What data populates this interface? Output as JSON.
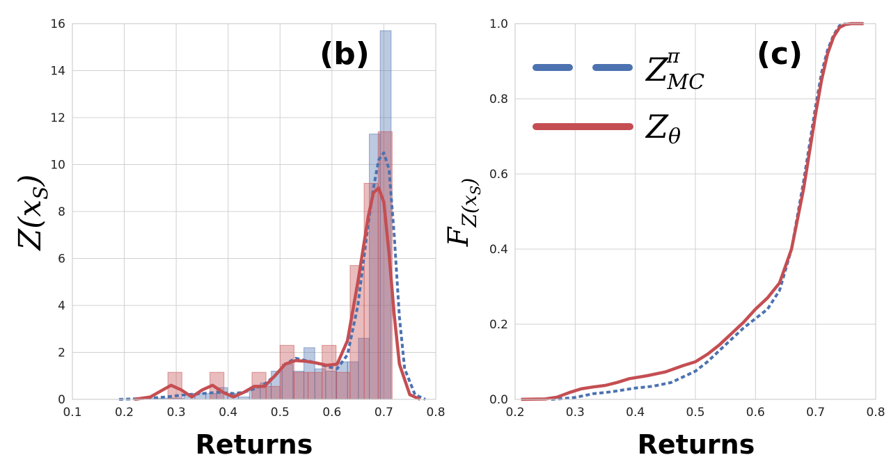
{
  "chart_data": [
    {
      "type": "bar",
      "panel_label": "(b)",
      "xlabel": "Returns",
      "ylabel": "Z(x_S)",
      "xlim": [
        0.1,
        0.8
      ],
      "ylim": [
        0,
        16
      ],
      "xticks": [
        "0.1",
        "0.2",
        "0.3",
        "0.4",
        "0.5",
        "0.6",
        "0.7",
        "0.8"
      ],
      "yticks": [
        "0",
        "2",
        "4",
        "6",
        "8",
        "10",
        "12",
        "14",
        "16"
      ],
      "grid": true,
      "series": [
        {
          "name": "Z_MC^π",
          "kind": "histogram",
          "color": "#4c72b0",
          "bins": [
            {
              "x0": 0.252,
              "x1": 0.273,
              "y": 0.05
            },
            {
              "x0": 0.273,
              "x1": 0.294,
              "y": 0.05
            },
            {
              "x0": 0.294,
              "x1": 0.315,
              "y": 0.05
            },
            {
              "x0": 0.315,
              "x1": 0.336,
              "y": 0.25
            },
            {
              "x0": 0.336,
              "x1": 0.357,
              "y": 0.25
            },
            {
              "x0": 0.357,
              "x1": 0.378,
              "y": 0.25
            },
            {
              "x0": 0.378,
              "x1": 0.399,
              "y": 0.5
            },
            {
              "x0": 0.399,
              "x1": 0.42,
              "y": 0.25
            },
            {
              "x0": 0.42,
              "x1": 0.441,
              "y": 0.1
            },
            {
              "x0": 0.441,
              "x1": 0.462,
              "y": 0.5
            },
            {
              "x0": 0.462,
              "x1": 0.483,
              "y": 0.7
            },
            {
              "x0": 0.483,
              "x1": 0.504,
              "y": 1.2
            },
            {
              "x0": 0.504,
              "x1": 0.525,
              "y": 1.5
            },
            {
              "x0": 0.525,
              "x1": 0.546,
              "y": 1.2
            },
            {
              "x0": 0.546,
              "x1": 0.567,
              "y": 2.2
            },
            {
              "x0": 0.567,
              "x1": 0.588,
              "y": 1.3
            },
            {
              "x0": 0.588,
              "x1": 0.609,
              "y": 1.2
            },
            {
              "x0": 0.609,
              "x1": 0.63,
              "y": 1.6
            },
            {
              "x0": 0.63,
              "x1": 0.651,
              "y": 1.6
            },
            {
              "x0": 0.651,
              "x1": 0.672,
              "y": 2.6
            },
            {
              "x0": 0.672,
              "x1": 0.693,
              "y": 11.3
            },
            {
              "x0": 0.693,
              "x1": 0.714,
              "y": 15.7
            }
          ],
          "kde": {
            "style": "dashed",
            "x": [
              0.19,
              0.22,
              0.25,
              0.28,
              0.3,
              0.32,
              0.35,
              0.38,
              0.41,
              0.43,
              0.45,
              0.47,
              0.49,
              0.51,
              0.53,
              0.55,
              0.57,
              0.59,
              0.61,
              0.63,
              0.65,
              0.67,
              0.68,
              0.69,
              0.7,
              0.71,
              0.72,
              0.73,
              0.74,
              0.76,
              0.78
            ],
            "y": [
              0,
              0.02,
              0.05,
              0.1,
              0.15,
              0.2,
              0.25,
              0.3,
              0.25,
              0.3,
              0.45,
              0.65,
              1.0,
              1.5,
              1.75,
              1.65,
              1.55,
              1.4,
              1.3,
              1.9,
              4.0,
              7.5,
              9.0,
              10.2,
              10.5,
              9.8,
              7.0,
              3.5,
              1.3,
              0.2,
              0
            ]
          }
        },
        {
          "name": "Z_θ",
          "kind": "histogram",
          "color": "#c44e52",
          "bins": [
            {
              "x0": 0.284,
              "x1": 0.311,
              "y": 1.15
            },
            {
              "x0": 0.365,
              "x1": 0.392,
              "y": 1.15
            },
            {
              "x0": 0.446,
              "x1": 0.473,
              "y": 1.15
            },
            {
              "x0": 0.473,
              "x1": 0.5,
              "y": 0.55
            },
            {
              "x0": 0.5,
              "x1": 0.527,
              "y": 2.3
            },
            {
              "x0": 0.527,
              "x1": 0.554,
              "y": 1.15
            },
            {
              "x0": 0.554,
              "x1": 0.581,
              "y": 1.15
            },
            {
              "x0": 0.581,
              "x1": 0.608,
              "y": 2.3
            },
            {
              "x0": 0.608,
              "x1": 0.635,
              "y": 1.15
            },
            {
              "x0": 0.635,
              "x1": 0.662,
              "y": 5.7
            },
            {
              "x0": 0.662,
              "x1": 0.689,
              "y": 9.2
            },
            {
              "x0": 0.689,
              "x1": 0.716,
              "y": 11.4
            }
          ],
          "kde": {
            "style": "solid",
            "x": [
              0.22,
              0.25,
              0.27,
              0.29,
              0.31,
              0.33,
              0.35,
              0.37,
              0.39,
              0.41,
              0.43,
              0.45,
              0.47,
              0.49,
              0.51,
              0.53,
              0.55,
              0.57,
              0.59,
              0.61,
              0.63,
              0.65,
              0.67,
              0.68,
              0.69,
              0.7,
              0.71,
              0.72,
              0.73,
              0.75,
              0.77
            ],
            "y": [
              0,
              0.1,
              0.35,
              0.6,
              0.4,
              0.1,
              0.4,
              0.6,
              0.3,
              0.1,
              0.3,
              0.55,
              0.55,
              1.0,
              1.5,
              1.65,
              1.62,
              1.55,
              1.45,
              1.5,
              2.5,
              5.0,
              7.8,
              8.8,
              9.0,
              8.4,
              6.2,
              3.6,
              1.5,
              0.2,
              0
            ]
          }
        }
      ]
    },
    {
      "type": "line",
      "panel_label": "(c)",
      "xlabel": "Returns",
      "ylabel": "F_Z(x_S)",
      "xlim": [
        0.2,
        0.8
      ],
      "ylim": [
        0,
        1
      ],
      "xticks": [
        "0.2",
        "0.3",
        "0.4",
        "0.5",
        "0.6",
        "0.7",
        "0.8"
      ],
      "yticks": [
        "0.0",
        "0.2",
        "0.4",
        "0.6",
        "0.8",
        "1.0"
      ],
      "grid": true,
      "legend_position": "upper-left",
      "series": [
        {
          "name": "Z_MC^π",
          "style": "dashed",
          "color": "#4c72b0",
          "x": [
            0.26,
            0.28,
            0.3,
            0.33,
            0.36,
            0.4,
            0.43,
            0.46,
            0.48,
            0.5,
            0.52,
            0.54,
            0.56,
            0.58,
            0.6,
            0.62,
            0.64,
            0.66,
            0.68,
            0.7,
            0.71,
            0.72,
            0.73,
            0.74,
            0.75
          ],
          "y": [
            0,
            0.002,
            0.005,
            0.015,
            0.02,
            0.03,
            0.035,
            0.045,
            0.06,
            0.075,
            0.1,
            0.13,
            0.16,
            0.19,
            0.215,
            0.24,
            0.29,
            0.4,
            0.58,
            0.78,
            0.87,
            0.93,
            0.97,
            0.995,
            1.0
          ]
        },
        {
          "name": "Z_θ",
          "style": "solid",
          "color": "#c44e52",
          "x": [
            0.21,
            0.25,
            0.27,
            0.29,
            0.31,
            0.33,
            0.35,
            0.37,
            0.39,
            0.42,
            0.45,
            0.48,
            0.5,
            0.52,
            0.54,
            0.56,
            0.58,
            0.6,
            0.62,
            0.64,
            0.66,
            0.68,
            0.7,
            0.71,
            0.72,
            0.73,
            0.74,
            0.75,
            0.76,
            0.78
          ],
          "y": [
            0,
            0.001,
            0.006,
            0.018,
            0.028,
            0.033,
            0.037,
            0.045,
            0.055,
            0.063,
            0.073,
            0.09,
            0.1,
            0.12,
            0.145,
            0.175,
            0.205,
            0.24,
            0.27,
            0.31,
            0.4,
            0.56,
            0.76,
            0.85,
            0.92,
            0.965,
            0.99,
            0.998,
            1.0,
            1.0
          ]
        }
      ]
    }
  ]
}
